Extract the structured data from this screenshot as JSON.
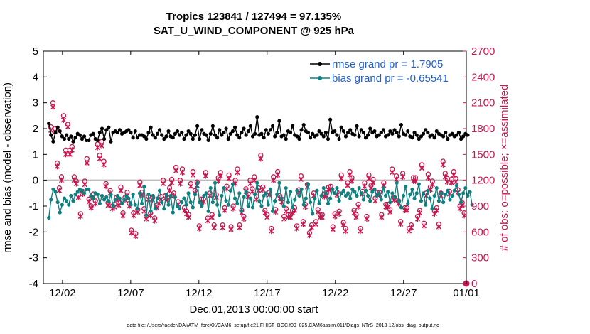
{
  "chart_data": {
    "type": "line",
    "title": "Tropics 123841 / 127494 = 97.135%",
    "subtitle": "SAT_U_WIND_COMPONENT @ 925 hPa",
    "xlabel": "Dec.01,2013 00:00:00 start",
    "ylabel_left": "rmse and bias (model - observation)",
    "ylabel_right": "# of obs: o=possible; ×=assimilated",
    "footnote": "data file: /Users/raeder/DAI/ATM_forcXX/CAM6_setup/f.e21.FHIST_BGC.f09_025.CAM6assim.011/Diags_NTrS_2013-12/obs_diag_output.nc",
    "xlim": [
      0.6,
      31.6
    ],
    "ylim_left": [
      -4,
      5
    ],
    "ylim_right": [
      0,
      2700
    ],
    "x_ticks": [
      {
        "label": "12/02",
        "value": 2
      },
      {
        "label": "12/07",
        "value": 7
      },
      {
        "label": "12/12",
        "value": 12
      },
      {
        "label": "12/17",
        "value": 17
      },
      {
        "label": "12/22",
        "value": 22
      },
      {
        "label": "12/27",
        "value": 27
      },
      {
        "label": "01/01",
        "value": 32
      }
    ],
    "y_ticks_left": [
      "5",
      "4",
      "3",
      "2",
      "1",
      "0",
      "-1",
      "-2",
      "-3",
      "-4"
    ],
    "y_ticks_right": [
      "2700",
      "2400",
      "2100",
      "1800",
      "1500",
      "1200",
      "900",
      "600",
      "300",
      "0"
    ],
    "series": [
      {
        "name": "rmse grand pr = 1.7905",
        "color": "#000000",
        "axis": "left",
        "values": [
          2.2,
          1.75,
          1.5,
          1.85,
          2.05,
          1.9,
          1.7,
          1.6,
          1.75,
          1.6,
          1.7,
          1.5,
          1.65,
          1.8,
          1.75,
          1.6,
          1.7,
          1.55,
          1.55,
          1.75,
          1.8,
          1.6,
          1.55,
          1.85,
          2.0,
          1.6,
          1.95,
          2.05,
          1.5,
          1.85,
          1.9,
          1.85,
          1.95,
          1.8,
          1.85,
          1.9,
          1.95,
          1.85,
          1.65,
          1.9,
          1.65,
          1.75,
          1.75,
          1.7,
          1.6,
          1.85,
          2.05,
          1.75,
          1.65,
          1.8,
          1.95,
          1.75,
          1.6,
          1.7,
          1.9,
          1.7,
          1.65,
          1.8,
          1.9,
          1.75,
          1.85,
          1.6,
          1.75,
          1.9,
          1.8,
          1.6,
          1.75,
          2.1,
          1.6,
          1.95,
          1.8,
          1.75,
          1.55,
          1.8,
          2.1,
          1.75,
          1.65,
          1.95,
          1.75,
          1.85,
          2.0,
          1.6,
          1.8,
          1.9,
          2.05,
          1.75,
          1.65,
          1.85,
          2.0,
          1.75,
          1.9,
          2.1,
          1.7,
          1.8,
          2.45,
          1.75,
          1.8,
          1.65,
          1.95,
          1.8,
          1.95,
          2.1,
          1.7,
          1.85,
          2.3,
          1.7,
          1.75,
          1.6,
          1.9,
          1.85,
          2.1,
          1.75,
          1.7,
          1.6,
          1.95,
          2.15,
          1.9,
          1.85,
          1.65,
          1.8,
          1.7,
          1.75,
          1.9,
          1.8,
          1.7,
          1.85,
          1.6,
          2.35,
          1.85,
          1.9,
          1.75,
          1.6,
          2.05,
          1.9,
          1.7,
          1.85,
          1.95,
          1.8,
          1.75,
          2.1,
          1.7,
          1.95,
          1.85,
          1.65,
          1.75,
          2.0,
          1.85,
          1.9,
          1.7,
          1.75,
          1.85,
          1.95,
          1.7,
          1.75,
          1.9,
          1.8,
          1.95,
          1.85,
          1.7,
          2.15,
          1.8,
          1.75,
          1.9,
          1.7,
          1.65,
          1.85,
          1.75,
          1.6,
          1.7,
          1.8,
          1.95,
          1.85,
          1.7,
          1.75,
          1.65,
          1.9,
          1.8,
          1.75,
          1.7,
          1.85,
          1.6,
          1.75,
          1.8,
          1.7,
          1.75,
          1.85,
          1.6,
          1.7,
          1.8,
          1.75
        ]
      },
      {
        "name": "bias grand pr = -0.65541",
        "color": "#0f8080",
        "axis": "left",
        "values": [
          -1.45,
          -0.75,
          -0.35,
          -0.45,
          -0.85,
          -1.25,
          -0.95,
          -0.7,
          -0.8,
          -0.95,
          -0.6,
          -0.8,
          -0.55,
          -0.45,
          -0.35,
          -0.4,
          -0.5,
          -0.35,
          -0.35,
          -0.6,
          -0.7,
          -0.5,
          -0.55,
          -0.9,
          -0.6,
          -0.75,
          -0.65,
          -0.8,
          -0.55,
          -1.0,
          -0.75,
          -0.6,
          -0.7,
          -0.9,
          -0.75,
          -0.6,
          -0.7,
          -0.95,
          -0.55,
          -0.95,
          -1.1,
          -0.5,
          -0.9,
          -0.25,
          -1.35,
          -0.55,
          -1.2,
          -0.6,
          -1.1,
          -0.7,
          -0.4,
          -0.85,
          -1.1,
          -0.55,
          -0.95,
          -0.6,
          -1.25,
          -0.65,
          -1.0,
          -1.1,
          -0.85,
          -0.7,
          -0.95,
          -0.5,
          -0.85,
          -1.05,
          -0.55,
          -0.1,
          -0.85,
          -1.0,
          -0.6,
          -0.5,
          -1.2,
          -0.3,
          -0.85,
          -0.1,
          -0.95,
          -1.35,
          -0.6,
          -0.3,
          -0.8,
          -0.95,
          -0.4,
          -0.15,
          -0.7,
          -0.9,
          -0.5,
          -1.2,
          -0.65,
          -0.45,
          -1.0,
          -0.7,
          -1.05,
          -0.55,
          -0.1,
          -0.8,
          -1.0,
          -0.6,
          -0.5,
          -0.95,
          -0.35,
          -1.2,
          -0.8,
          -0.55,
          -0.1,
          -0.7,
          -1.0,
          -0.3,
          -0.85,
          -0.45,
          -1.05,
          -0.75,
          -0.4,
          -0.6,
          -0.35,
          -0.95,
          -0.7,
          -0.15,
          -0.85,
          -1.3,
          -0.7,
          -0.4,
          -0.9,
          -0.6,
          -0.3,
          -0.5,
          -0.9,
          -0.7,
          -0.35,
          -0.5,
          -0.3,
          -0.8,
          -0.5,
          -0.4,
          -0.6,
          -0.5,
          -0.7,
          -0.35,
          -0.45,
          -0.6,
          -0.3,
          -0.5,
          -0.75,
          -0.4,
          -0.6,
          -0.8,
          -0.45,
          -0.35,
          -0.6,
          -0.5,
          -0.75,
          -0.3,
          -0.6,
          -0.45,
          -0.85,
          -0.5,
          -0.65,
          -0.1,
          -0.8,
          -1.05,
          -0.6,
          -0.25,
          -0.9,
          -0.55,
          -0.35,
          -0.7,
          -0.5,
          -0.15,
          -0.8,
          -0.5,
          -0.95,
          -0.4,
          -0.7,
          -1.1,
          -0.6,
          -0.3,
          -0.8,
          -0.5,
          -0.85,
          -0.55,
          -0.4,
          -0.75,
          -0.6,
          -0.4,
          -0.2,
          -0.55,
          -0.85,
          -0.5,
          -0.3,
          -0.6,
          -0.45,
          -0.95
        ]
      },
      {
        "name": "possible",
        "marker": "o",
        "color": "#c8174f",
        "axis": "right",
        "values": [
          1820,
          2100,
          1800,
          1400,
          1110,
          1240,
          1950,
          1550,
          1850,
          1550,
          1590,
          1240,
          1190,
          1030,
          810,
          1070,
          1190,
          1450,
          980,
          900,
          1040,
          960,
          1620,
          1490,
          1650,
          1420,
          1160,
          940,
          1080,
          900,
          920,
          1000,
          940,
          1120,
          820,
          1000,
          1060,
          930,
          620,
          820,
          580,
          860,
          1180,
          1060,
          870,
          780,
          1010,
          820,
          1000,
          760,
          910,
          960,
          1010,
          1200,
          1020,
          1000,
          1110,
          1210,
          1050,
          1350,
          950,
          1200,
          1330,
          880,
          840,
          800,
          1160,
          1300,
          1080,
          1180,
          670,
          980,
          980,
          1290,
          760,
          1050,
          800,
          680,
          1030,
          1230,
          1290,
          680,
          880,
          1130,
          1260,
          660,
          900,
          1200,
          1330,
          680,
          850,
          780,
          1100,
          1040,
          1200,
          1100,
          1240,
          1010,
          1110,
          1490,
          1120,
          850,
          800,
          1060,
          640,
          1240,
          860,
          1300,
          1020,
          980,
          780,
          870,
          800,
          800,
          850,
          880,
          670,
          1090,
          1250,
          720,
          920,
          1150,
          590,
          680,
          1050,
          720,
          860,
          800,
          800,
          1040,
          1050,
          1120,
          1130,
          660,
          810,
          1060,
          840,
          1260,
          710,
          640,
          1170,
          1300,
          1230,
          850,
          800,
          920,
          640,
          1070,
          1170,
          780,
          1260,
          1140,
          1210,
          990,
          1060,
          1060,
          800,
          1170,
          920,
          920,
          860,
          1330,
          1000,
          1250,
          960,
          720,
          1280,
          880,
          880,
          640,
          680,
          1230,
          1230,
          780,
          850,
          1380,
          700,
          1050,
          1270,
          1120,
          1190,
          840,
          880,
          690,
          1050,
          1420,
          1280,
          1220,
          1070,
          1210,
          1300,
          1220,
          1090,
          900,
          940,
          820
        ]
      },
      {
        "name": "assimilated",
        "marker": "x",
        "color": "#c8174f",
        "axis": "right",
        "values": [
          1780,
          2050,
          1760,
          1360,
          1080,
          1200,
          1900,
          1500,
          1820,
          1500,
          1550,
          1200,
          1160,
          1000,
          780,
          1040,
          1150,
          1400,
          950,
          880,
          1000,
          930,
          1580,
          1450,
          1600,
          1380,
          1130,
          910,
          1050,
          870,
          890,
          970,
          910,
          1080,
          790,
          970,
          1020,
          900,
          590,
          790,
          550,
          830,
          1140,
          1030,
          840,
          750,
          980,
          790,
          970,
          730,
          880,
          930,
          980,
          1160,
          990,
          970,
          1080,
          1170,
          1020,
          1310,
          920,
          1160,
          1290,
          850,
          810,
          770,
          1130,
          1260,
          1050,
          1140,
          640,
          950,
          950,
          1250,
          730,
          1020,
          770,
          650,
          1000,
          1190,
          1250,
          650,
          850,
          1100,
          1220,
          630,
          870,
          1160,
          1290,
          650,
          820,
          750,
          1070,
          1010,
          1160,
          1070,
          1200,
          980,
          1080,
          1450,
          1090,
          820,
          770,
          1030,
          610,
          1200,
          830,
          1260,
          990,
          950,
          750,
          840,
          770,
          770,
          820,
          850,
          640,
          1060,
          1210,
          690,
          890,
          1120,
          560,
          650,
          1020,
          690,
          830,
          770,
          770,
          1010,
          1020,
          1090,
          1100,
          630,
          780,
          1030,
          810,
          1220,
          680,
          610,
          1140,
          1260,
          1190,
          820,
          770,
          890,
          610,
          1040,
          1130,
          750,
          1220,
          1110,
          1170,
          960,
          1030,
          1030,
          770,
          1140,
          890,
          890,
          830,
          1290,
          970,
          1210,
          930,
          690,
          1240,
          850,
          850,
          610,
          650,
          1190,
          1190,
          750,
          820,
          1340,
          670,
          1020,
          1230,
          1090,
          1150,
          810,
          850,
          660,
          1020,
          1380,
          1240,
          1180,
          1040,
          1170,
          1260,
          1180,
          1060,
          870,
          910,
          790
        ]
      }
    ],
    "zero_line": 0,
    "legend_location": "top-right",
    "final_marker_value": 0
  },
  "colors": {
    "rmse": "#000000",
    "bias": "#0f8080",
    "obs": "#c8174f",
    "legend_text": "#1f5fd6",
    "zero_line": "#bbbbbb"
  }
}
